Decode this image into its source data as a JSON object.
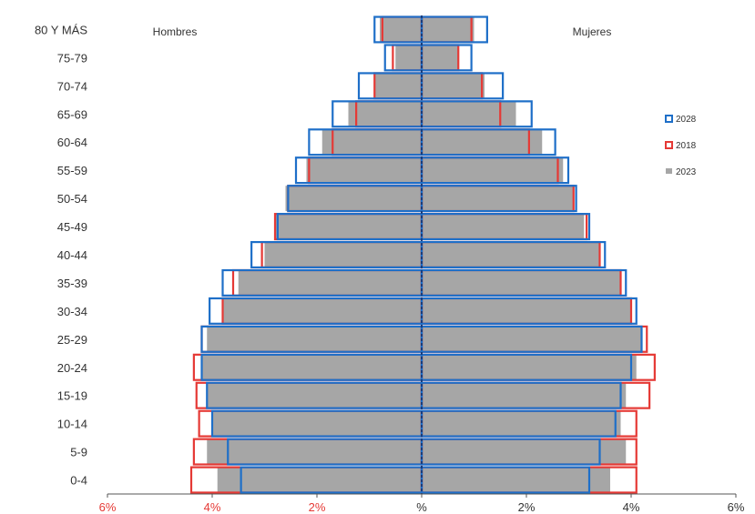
{
  "chart_data": {
    "type": "bar",
    "subtype": "population-pyramid",
    "left_title": "Hombres",
    "right_title": "Mujeres",
    "categories": [
      "80 Y MÁS",
      "75-79",
      "70-74",
      "65-69",
      "60-64",
      "55-59",
      "50-54",
      "45-49",
      "40-44",
      "35-39",
      "30-34",
      "25-29",
      "20-24",
      "15-19",
      "10-14",
      "5-9",
      "0-4"
    ],
    "xlim": [
      -6,
      6
    ],
    "x_ticks": [
      {
        "value": -6,
        "label": "6%",
        "color": "#e53935"
      },
      {
        "value": -4,
        "label": "4%",
        "color": "#e53935"
      },
      {
        "value": -2,
        "label": "2%",
        "color": "#e53935"
      },
      {
        "value": 0,
        "label": "%",
        "color": "#333333"
      },
      {
        "value": 2,
        "label": "2%",
        "color": "#333333"
      },
      {
        "value": 4,
        "label": "4%",
        "color": "#333333"
      },
      {
        "value": 6,
        "label": "6%",
        "color": "#333333"
      }
    ],
    "legend_position": "right",
    "series": [
      {
        "name": "2023",
        "style": "filled",
        "color": "#a6a6a6",
        "hombres": [
          0.8,
          0.5,
          0.9,
          1.4,
          1.9,
          2.2,
          2.6,
          2.8,
          3.0,
          3.5,
          3.8,
          4.1,
          4.2,
          4.1,
          4.0,
          4.1,
          3.9
        ],
        "mujeres": [
          1.0,
          0.7,
          1.2,
          1.8,
          2.3,
          2.7,
          2.9,
          3.1,
          3.4,
          3.8,
          4.0,
          4.2,
          4.1,
          3.9,
          3.8,
          3.9,
          3.6
        ]
      },
      {
        "name": "2018",
        "style": "outline",
        "color": "#e53935",
        "hombres": [
          0.75,
          0.55,
          0.9,
          1.25,
          1.7,
          2.15,
          2.55,
          2.8,
          3.05,
          3.6,
          3.8,
          4.2,
          4.35,
          4.3,
          4.25,
          4.35,
          4.4
        ],
        "mujeres": [
          0.95,
          0.7,
          1.15,
          1.5,
          2.05,
          2.6,
          2.9,
          3.15,
          3.4,
          3.8,
          4.0,
          4.3,
          4.45,
          4.35,
          4.1,
          4.1,
          4.1
        ]
      },
      {
        "name": "2028",
        "style": "outline",
        "color": "#1e6fc8",
        "hombres": [
          0.9,
          0.7,
          1.2,
          1.7,
          2.15,
          2.4,
          2.55,
          2.75,
          3.25,
          3.8,
          4.05,
          4.2,
          4.2,
          4.1,
          4.0,
          3.7,
          3.45
        ],
        "mujeres": [
          1.25,
          0.95,
          1.55,
          2.1,
          2.55,
          2.8,
          2.95,
          3.2,
          3.5,
          3.9,
          4.1,
          4.2,
          4.0,
          3.8,
          3.7,
          3.4,
          3.2
        ]
      }
    ],
    "legend_order": [
      "2028",
      "2018",
      "2023"
    ]
  }
}
